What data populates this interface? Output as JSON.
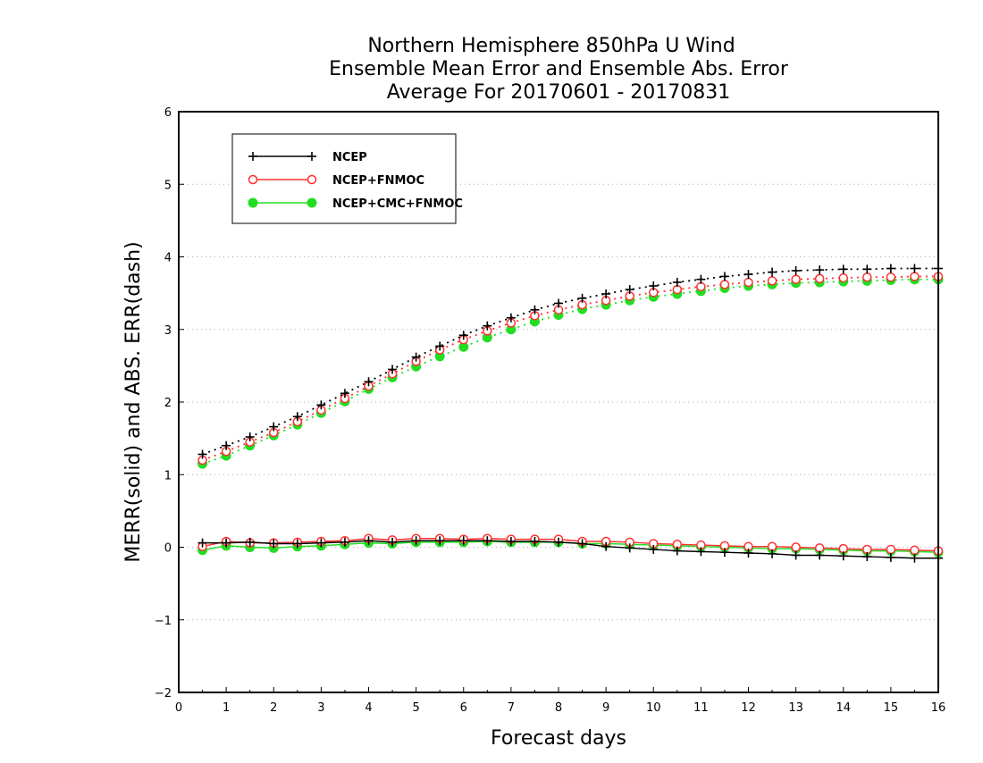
{
  "chart_data": {
    "type": "line",
    "title_lines": [
      "Northern Hemisphere 850hPa U Wind",
      "Ensemble Mean Error and Ensemble Abs. Error",
      "Average For 20170601 - 20170831"
    ],
    "xlabel": "Forecast days",
    "ylabel": "MERR(solid) and ABS. ERR(dash)",
    "xlim": [
      0,
      16
    ],
    "ylim": [
      -2,
      6
    ],
    "x_ticks": [
      "0",
      "1",
      "2",
      "3",
      "4",
      "5",
      "6",
      "7",
      "8",
      "9",
      "10",
      "11",
      "12",
      "13",
      "14",
      "15",
      "16"
    ],
    "y_ticks": [
      "−2",
      "−1",
      "0",
      "1",
      "2",
      "3",
      "4",
      "5",
      "6"
    ],
    "y_tick_values": [
      -2,
      -1,
      0,
      1,
      2,
      3,
      4,
      5,
      6
    ],
    "grid": "horizontal dotted",
    "legend_position": "top-left",
    "x": [
      0.5,
      1,
      1.5,
      2,
      2.5,
      3,
      3.5,
      4,
      4.5,
      5,
      5.5,
      6,
      6.5,
      7,
      7.5,
      8,
      8.5,
      9,
      9.5,
      10,
      10.5,
      11,
      11.5,
      12,
      12.5,
      13,
      13.5,
      14,
      14.5,
      15,
      15.5,
      16
    ],
    "series": [
      {
        "name": "NCEP",
        "color": "#000000",
        "marker": "plus",
        "abs_err": [
          1.28,
          1.4,
          1.52,
          1.66,
          1.8,
          1.96,
          2.12,
          2.28,
          2.45,
          2.62,
          2.77,
          2.92,
          3.05,
          3.16,
          3.27,
          3.36,
          3.43,
          3.49,
          3.55,
          3.6,
          3.65,
          3.69,
          3.73,
          3.76,
          3.79,
          3.81,
          3.82,
          3.83,
          3.83,
          3.84,
          3.84,
          3.84
        ],
        "mean_err": [
          0.06,
          0.06,
          0.07,
          0.05,
          0.05,
          0.06,
          0.07,
          0.09,
          0.07,
          0.09,
          0.09,
          0.09,
          0.09,
          0.08,
          0.08,
          0.07,
          0.05,
          0.01,
          -0.01,
          -0.03,
          -0.05,
          -0.06,
          -0.07,
          -0.08,
          -0.09,
          -0.11,
          -0.11,
          -0.12,
          -0.13,
          -0.14,
          -0.15,
          -0.15
        ]
      },
      {
        "name": "NCEP+FNMOC",
        "color": "#ff3030",
        "marker": "open-circle",
        "abs_err": [
          1.2,
          1.32,
          1.45,
          1.58,
          1.73,
          1.89,
          2.05,
          2.22,
          2.39,
          2.56,
          2.72,
          2.86,
          2.98,
          3.09,
          3.19,
          3.27,
          3.34,
          3.4,
          3.46,
          3.51,
          3.55,
          3.59,
          3.62,
          3.65,
          3.67,
          3.69,
          3.7,
          3.71,
          3.72,
          3.72,
          3.73,
          3.73
        ],
        "mean_err": [
          0.01,
          0.08,
          0.06,
          0.06,
          0.07,
          0.08,
          0.09,
          0.12,
          0.1,
          0.12,
          0.12,
          0.11,
          0.12,
          0.11,
          0.11,
          0.11,
          0.08,
          0.08,
          0.07,
          0.05,
          0.04,
          0.03,
          0.02,
          0.01,
          0.01,
          0.0,
          -0.01,
          -0.02,
          -0.03,
          -0.03,
          -0.04,
          -0.05
        ]
      },
      {
        "name": "NCEP+CMC+FNMOC",
        "color": "#22dd22",
        "marker": "filled-circle",
        "abs_err": [
          1.15,
          1.26,
          1.4,
          1.54,
          1.69,
          1.85,
          2.01,
          2.18,
          2.34,
          2.49,
          2.63,
          2.76,
          2.89,
          3.0,
          3.11,
          3.2,
          3.28,
          3.34,
          3.4,
          3.45,
          3.49,
          3.53,
          3.57,
          3.6,
          3.62,
          3.64,
          3.65,
          3.66,
          3.67,
          3.68,
          3.69,
          3.69
        ],
        "mean_err": [
          -0.04,
          0.02,
          0.0,
          -0.01,
          0.01,
          0.02,
          0.04,
          0.06,
          0.05,
          0.07,
          0.07,
          0.07,
          0.08,
          0.07,
          0.07,
          0.07,
          0.05,
          0.05,
          0.04,
          0.03,
          0.02,
          0.01,
          0.0,
          -0.01,
          -0.02,
          -0.02,
          -0.03,
          -0.04,
          -0.05,
          -0.05,
          -0.06,
          -0.07
        ]
      }
    ]
  }
}
